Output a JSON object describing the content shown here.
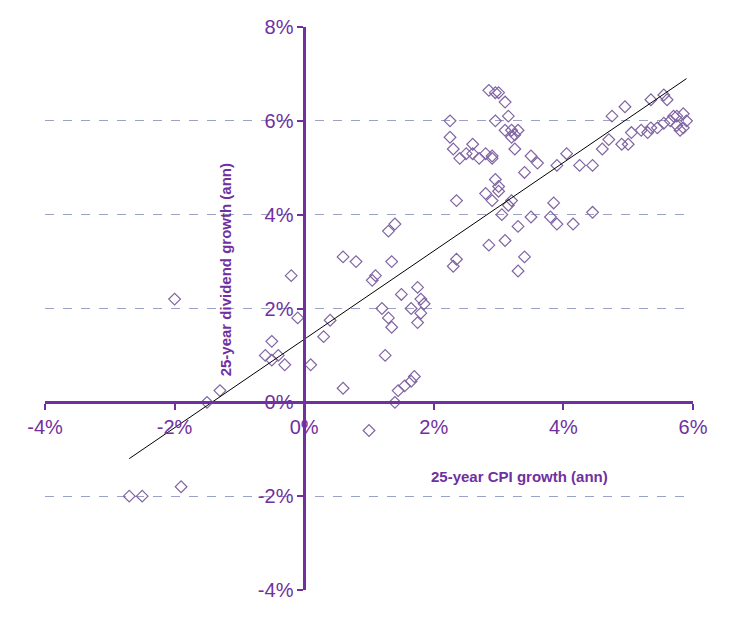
{
  "chart_data": {
    "type": "scatter",
    "x_label": "25-year CPI growth (ann)",
    "y_label": "25-year dividend growth (ann)",
    "xlim": [
      -4,
      6
    ],
    "ylim": [
      -4,
      8
    ],
    "xticks": [
      {
        "value": -4,
        "label": "-4%"
      },
      {
        "value": -2,
        "label": "-2%"
      },
      {
        "value": 0,
        "label": "0%"
      },
      {
        "value": 2,
        "label": "2%"
      },
      {
        "value": 4,
        "label": "4%"
      },
      {
        "value": 6,
        "label": "6%"
      }
    ],
    "yticks": [
      {
        "value": -4,
        "label": "-4%"
      },
      {
        "value": -2,
        "label": "-2%"
      },
      {
        "value": 0,
        "label": "0%"
      },
      {
        "value": 2,
        "label": "2%"
      },
      {
        "value": 4,
        "label": "4%"
      },
      {
        "value": 6,
        "label": "6%"
      },
      {
        "value": 8,
        "label": "8%"
      }
    ],
    "grid": true,
    "series": [
      {
        "type": "scatter",
        "marker": "diamond-open",
        "color": "#8064a2",
        "x": [
          -2.7,
          -2.5,
          -1.9,
          -1.5,
          -1.3,
          -2.0,
          -0.2,
          -0.1,
          -0.5,
          -0.6,
          -0.5,
          -0.4,
          -0.3,
          0.1,
          0.3,
          0.4,
          0.6,
          0.8,
          0.6,
          1.0,
          1.05,
          1.1,
          1.2,
          1.25,
          1.3,
          1.3,
          1.4,
          1.35,
          1.35,
          1.4,
          1.45,
          1.5,
          1.55,
          1.65,
          1.7,
          1.65,
          1.75,
          1.75,
          1.8,
          1.8,
          1.85,
          2.25,
          2.25,
          2.3,
          2.35,
          2.3,
          2.35,
          2.4,
          2.5,
          2.6,
          2.6,
          2.7,
          2.8,
          2.85,
          2.9,
          2.95,
          3.0,
          3.1,
          3.15,
          3.2,
          3.25,
          3.1,
          3.2,
          3.3,
          3.25,
          2.8,
          2.85,
          2.9,
          2.95,
          3.0,
          3.0,
          3.05,
          3.1,
          3.15,
          3.2,
          2.95,
          2.9,
          3.3,
          3.3,
          3.4,
          3.4,
          3.5,
          3.5,
          3.6,
          3.8,
          3.85,
          3.9,
          3.9,
          4.05,
          4.15,
          4.25,
          4.45,
          4.45,
          4.6,
          4.7,
          4.75,
          4.9,
          4.95,
          5.0,
          5.05,
          5.2,
          5.3,
          5.35,
          5.35,
          5.45,
          5.55,
          5.6,
          5.65,
          5.7,
          5.75,
          5.75,
          5.8,
          5.85,
          5.9,
          5.85,
          5.55
        ],
        "values": [
          -2.0,
          -2.0,
          -1.8,
          0.0,
          0.25,
          2.2,
          2.7,
          1.8,
          1.3,
          1.0,
          0.9,
          1.0,
          0.8,
          0.8,
          1.4,
          1.75,
          3.1,
          3.0,
          0.3,
          -0.6,
          2.6,
          2.7,
          2.0,
          1.0,
          1.8,
          3.65,
          3.8,
          3.0,
          1.6,
          0.0,
          0.25,
          2.3,
          0.35,
          0.45,
          0.55,
          2.0,
          2.45,
          1.7,
          2.2,
          1.9,
          2.1,
          6.0,
          5.65,
          5.4,
          4.3,
          2.9,
          3.05,
          5.2,
          5.3,
          5.5,
          5.3,
          5.2,
          5.3,
          6.65,
          5.2,
          6.6,
          6.6,
          6.4,
          6.1,
          5.8,
          5.7,
          5.8,
          5.65,
          5.8,
          5.4,
          4.45,
          3.35,
          4.3,
          4.75,
          4.6,
          4.5,
          4.0,
          3.45,
          4.2,
          4.3,
          6.0,
          5.25,
          3.75,
          2.8,
          3.1,
          4.9,
          5.25,
          3.95,
          5.1,
          3.95,
          4.25,
          3.8,
          5.05,
          5.3,
          3.8,
          5.05,
          4.05,
          5.05,
          5.4,
          5.6,
          6.1,
          5.5,
          6.3,
          5.5,
          5.75,
          5.8,
          5.75,
          6.45,
          5.85,
          5.85,
          6.55,
          6.45,
          6.0,
          6.1,
          6.1,
          5.9,
          5.8,
          6.15,
          6.0,
          5.85,
          5.95
        ]
      },
      {
        "type": "line",
        "line_style": "solid",
        "color": "#000000",
        "x": [
          -2.7,
          5.9
        ],
        "values": [
          -1.2,
          6.9
        ]
      }
    ]
  }
}
